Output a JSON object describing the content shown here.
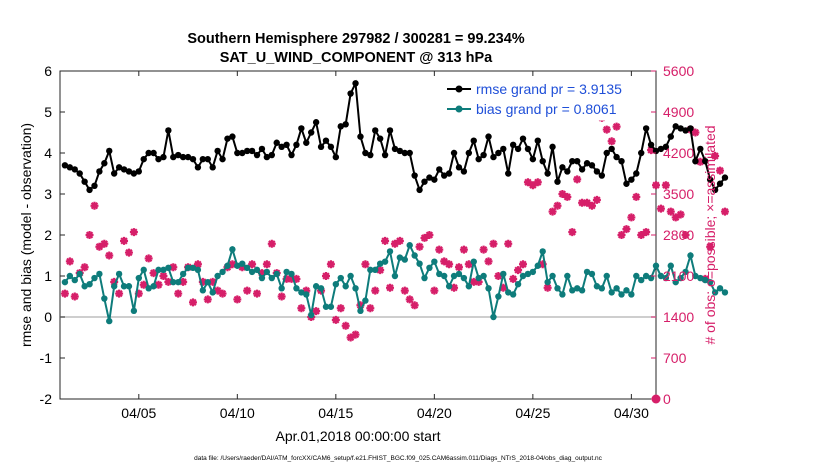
{
  "chart_data": {
    "type": "line",
    "title": "Southern Hemisphere 297982 / 300281 = 99.234%",
    "subtitle": "SAT_U_WIND_COMPONENT @ 313 hPa",
    "xlabel": "Apr.01,2018 00:00:00 start",
    "ylabel_left": "rmse and bias (model - observation)",
    "ylabel_right": "# of obs: o=possible; ×=assimilated",
    "footer": "data file: /Users/raeder/DAI/ATM_forcXX/CAM6_setup/f.e21.FHIST_BGC.f09_025.CAM6assim.011/Diags_NTrS_2018-04/obs_diag_output.nc",
    "xlim": [
      1,
      31.25
    ],
    "ylim_left": [
      -2,
      6
    ],
    "ylim_right": [
      0,
      5600
    ],
    "x_ticks": [
      5,
      10,
      15,
      20,
      25,
      30
    ],
    "x_tick_labels": [
      "04/05",
      "04/10",
      "04/15",
      "04/20",
      "04/25",
      "04/30"
    ],
    "y_left_ticks": [
      -2,
      -1,
      0,
      1,
      2,
      3,
      4,
      5,
      6
    ],
    "y_left_tick_labels": [
      "-2",
      "-1",
      "0",
      "1",
      "2",
      "3",
      "4",
      "5",
      "6"
    ],
    "y_right_ticks": [
      0,
      700,
      1400,
      2100,
      2800,
      3500,
      4200,
      4900,
      5600
    ],
    "y_right_tick_labels": [
      "0",
      "700",
      "1400",
      "2100",
      "2800",
      "3500",
      "4200",
      "4900",
      "5600"
    ],
    "legend": [
      "rmse grand pr = 3.9135",
      "bias grand pr = 0.8061"
    ],
    "legend_position": "top-right",
    "colors": {
      "rmse": "#000000",
      "bias": "#0e7c7b",
      "obs": "#d61f69",
      "zero": "#bdbdbd",
      "legend_text": "#1f4fd8"
    },
    "x_start": 1.25,
    "x_step": 0.25,
    "series": [
      {
        "name": "rmse",
        "values": [
          3.7,
          3.65,
          3.6,
          3.5,
          3.3,
          3.1,
          3.2,
          3.55,
          3.75,
          4.05,
          3.5,
          3.65,
          3.6,
          3.55,
          3.5,
          3.55,
          3.85,
          4.0,
          4.0,
          3.85,
          3.9,
          4.55,
          3.9,
          3.95,
          3.9,
          3.9,
          3.85,
          3.65,
          3.85,
          3.85,
          3.65,
          4.05,
          3.85,
          4.35,
          4.4,
          4.0,
          4.0,
          4.05,
          4.05,
          3.95,
          4.1,
          3.9,
          3.95,
          4.25,
          4.15,
          4.2,
          3.95,
          4.2,
          4.6,
          4.25,
          4.5,
          4.75,
          4.15,
          4.3,
          4.15,
          3.9,
          4.65,
          4.7,
          5.45,
          5.7,
          4.4,
          4.0,
          3.95,
          4.55,
          4.35,
          3.95,
          4.55,
          4.1,
          4.05,
          4.0,
          4.0,
          3.45,
          3.1,
          3.3,
          3.4,
          3.35,
          3.6,
          3.45,
          3.5,
          4.0,
          3.65,
          3.55,
          4.0,
          4.3,
          3.85,
          3.95,
          4.4,
          3.9,
          4.0,
          4.1,
          3.5,
          4.2,
          4.1,
          4.35,
          4.1,
          3.85,
          4.3,
          3.8,
          3.5,
          4.15,
          3.3,
          3.65,
          3.55,
          3.8,
          3.8,
          3.6,
          3.75,
          3.7,
          3.55,
          3.45,
          4.0,
          4.1,
          3.9,
          3.8,
          3.25,
          3.35,
          3.5,
          4.0,
          4.6,
          4.2,
          4.05,
          4.1,
          4.15,
          4.4,
          4.65,
          4.6,
          4.55,
          4.6,
          3.8,
          4.1,
          3.8,
          3.35,
          3.1,
          3.25,
          3.4
        ]
      },
      {
        "name": "bias",
        "values": [
          0.85,
          1.0,
          0.9,
          1.05,
          0.75,
          0.8,
          0.95,
          1.05,
          0.45,
          -0.1,
          0.75,
          1.05,
          0.75,
          0.75,
          0.15,
          0.95,
          1.15,
          0.7,
          0.75,
          1.15,
          1.15,
          1.2,
          0.85,
          0.85,
          1.05,
          1.2,
          1.2,
          1.15,
          0.65,
          0.85,
          0.6,
          1.0,
          1.1,
          1.25,
          1.65,
          1.25,
          1.3,
          1.2,
          1.1,
          1.15,
          0.95,
          1.1,
          0.95,
          1.05,
          0.7,
          1.1,
          1.05,
          0.7,
          0.6,
          0.55,
          0.05,
          0.75,
          0.7,
          0.25,
          0.25,
          0.8,
          0.95,
          0.75,
          1.0,
          0.7,
          0.15,
          0.4,
          1.15,
          1.15,
          1.3,
          1.35,
          1.6,
          1.0,
          1.45,
          1.4,
          1.75,
          1.5,
          1.3,
          0.95,
          1.2,
          1.35,
          1.05,
          1.0,
          0.75,
          1.0,
          1.05,
          0.95,
          0.75,
          1.35,
          0.95,
          1.0,
          0.7,
          0.0,
          0.5,
          1.05,
          0.6,
          0.55,
          0.8,
          1.0,
          1.05,
          1.1,
          1.25,
          1.6,
          0.85,
          1.0,
          0.7,
          0.55,
          1.0,
          0.65,
          0.7,
          0.65,
          1.1,
          1.05,
          0.75,
          0.7,
          1.0,
          0.6,
          0.7,
          0.55,
          0.65,
          0.55,
          1.0,
          0.9,
          1.0,
          0.95,
          1.25,
          1.0,
          0.95,
          1.25,
          0.85,
          0.95,
          1.1,
          1.5,
          1.0,
          0.95,
          0.9,
          0.85,
          0.6,
          0.7,
          0.6
        ]
      },
      {
        "name": "obs",
        "values": [
          1800,
          2350,
          1750,
          2150,
          2250,
          2800,
          3300,
          2600,
          2650,
          2450,
          2000,
          1800,
          2700,
          2500,
          2850,
          1800,
          1950,
          2400,
          2150,
          1950,
          2100,
          2000,
          2250,
          1800,
          2000,
          2250,
          1650,
          2300,
          2000,
          1700,
          2000,
          1850,
          1800,
          2250,
          2300,
          1700,
          2250,
          1850,
          2300,
          1800,
          2150,
          2300,
          2650,
          2150,
          1750,
          2050,
          2050,
          2050,
          1550,
          1850,
          1400,
          1500,
          1850,
          2100,
          2300,
          1350,
          1550,
          1250,
          1050,
          1100,
          1600,
          2300,
          1550,
          1850,
          2200,
          2700,
          1900,
          2650,
          2700,
          1850,
          1700,
          1600,
          2600,
          2750,
          2800,
          1850,
          2550,
          2350,
          2300,
          1900,
          2250,
          2550,
          2300,
          2000,
          2000,
          2550,
          2350,
          2650,
          2100,
          1900,
          2650,
          2050,
          2200,
          2300,
          3700,
          3650,
          3700,
          2300,
          1900,
          3200,
          3300,
          3500,
          3450,
          2850,
          3750,
          3350,
          3350,
          3300,
          3400,
          4800,
          4600,
          4400,
          4650,
          2800,
          2900,
          3100,
          3450,
          2800,
          2850,
          4250,
          3650,
          3250,
          3650,
          3200,
          3100,
          3150,
          2800,
          4600,
          4550,
          4050,
          2050,
          2600,
          4150,
          3900,
          3200
        ]
      }
    ]
  }
}
